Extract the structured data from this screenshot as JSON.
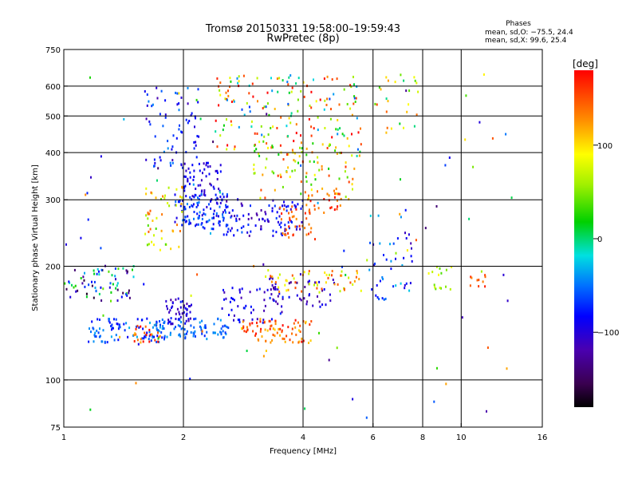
{
  "chart_data": {
    "type": "scatter",
    "title": "Tromsø 20150331 19:58:00–19:59:43",
    "subtitle": "RwPretec (8p)",
    "xlabel": "Frequency [MHz]",
    "ylabel": "Stationary phase Virtual Height [km]",
    "x_scale": "log",
    "y_scale": "log",
    "xlim": [
      1,
      16
    ],
    "ylim": [
      75,
      750
    ],
    "x_ticks": [
      1,
      2,
      4,
      6,
      8,
      10,
      16
    ],
    "x_tick_labels": [
      "1",
      "2",
      "4",
      "6",
      "8",
      "10",
      "16"
    ],
    "y_ticks": [
      75,
      100,
      200,
      300,
      400,
      500,
      600,
      750
    ],
    "y_tick_labels": [
      "75",
      "100",
      "200",
      "300",
      "400",
      "500",
      "600",
      "750"
    ],
    "grid": true,
    "grid_x": [
      2,
      4,
      6,
      8,
      10
    ],
    "grid_y": [
      100,
      200,
      300,
      400,
      500,
      600
    ],
    "phase_stats": {
      "heading": "Phases",
      "line1": "mean, sd,O: −75.5, 24.4",
      "line2": "mean, sd,X:  99.6, 25.4"
    },
    "colorbar": {
      "label": "[deg]",
      "range": [
        -180,
        180
      ],
      "ticks": [
        100,
        0,
        -100
      ],
      "tick_labels": [
        "100",
        "0",
        "−100"
      ],
      "colormap": "rainbow (black-purple-blue-cyan-green-yellow-orange-red)"
    },
    "clusters": [
      {
        "x": [
          1.0,
          1.5
        ],
        "y": [
          160,
          200
        ],
        "n": 70,
        "phase": -60,
        "spread": 110
      },
      {
        "x": [
          1.15,
          1.8
        ],
        "y": [
          125,
          145
        ],
        "n": 90,
        "phase": -60,
        "spread": 30
      },
      {
        "x": [
          1.5,
          1.75
        ],
        "y": [
          125,
          140
        ],
        "n": 25,
        "phase": 150,
        "spread": 40
      },
      {
        "x": [
          1.7,
          2.6
        ],
        "y": [
          128,
          145
        ],
        "n": 80,
        "phase": -55,
        "spread": 20
      },
      {
        "x": [
          1.8,
          2.1
        ],
        "y": [
          140,
          165
        ],
        "n": 50,
        "phase": -100,
        "spread": 25
      },
      {
        "x": [
          1.9,
          2.6
        ],
        "y": [
          250,
          310
        ],
        "n": 110,
        "phase": -75,
        "spread": 30
      },
      {
        "x": [
          2.0,
          2.5
        ],
        "y": [
          300,
          380
        ],
        "n": 60,
        "phase": -95,
        "spread": 20
      },
      {
        "x": [
          1.6,
          2.2
        ],
        "y": [
          360,
          600
        ],
        "n": 70,
        "phase": -80,
        "spread": 40
      },
      {
        "x": [
          1.6,
          2.0
        ],
        "y": [
          220,
          330
        ],
        "n": 50,
        "phase": 90,
        "spread": 60
      },
      {
        "x": [
          2.5,
          4.0
        ],
        "y": [
          240,
          300
        ],
        "n": 100,
        "phase": -95,
        "spread": 30
      },
      {
        "x": [
          3.5,
          4.3
        ],
        "y": [
          235,
          290
        ],
        "n": 35,
        "phase": 150,
        "spread": 25
      },
      {
        "x": [
          2.5,
          3.6
        ],
        "y": [
          140,
          175
        ],
        "n": 55,
        "phase": -95,
        "spread": 25
      },
      {
        "x": [
          2.8,
          4.2
        ],
        "y": [
          125,
          145
        ],
        "n": 80,
        "phase": 140,
        "spread": 40
      },
      {
        "x": [
          3.2,
          4.8
        ],
        "y": [
          155,
          190
        ],
        "n": 45,
        "phase": -110,
        "spread": 25
      },
      {
        "x": [
          3.2,
          5.6
        ],
        "y": [
          170,
          195
        ],
        "n": 55,
        "phase": 110,
        "spread": 45
      },
      {
        "x": [
          2.4,
          5.6
        ],
        "y": [
          390,
          640
        ],
        "n": 170,
        "phase": 60,
        "spread": 130
      },
      {
        "x": [
          3.0,
          5.4
        ],
        "y": [
          300,
          430
        ],
        "n": 90,
        "phase": 90,
        "spread": 80
      },
      {
        "x": [
          4.0,
          5.0
        ],
        "y": [
          275,
          320
        ],
        "n": 30,
        "phase": 150,
        "spread": 30
      },
      {
        "x": [
          5.8,
          7.6
        ],
        "y": [
          160,
          290
        ],
        "n": 45,
        "phase": -70,
        "spread": 50
      },
      {
        "x": [
          6.0,
          7.8
        ],
        "y": [
          450,
          650
        ],
        "n": 25,
        "phase": 80,
        "spread": 90
      },
      {
        "x": [
          8.0,
          9.5
        ],
        "y": [
          170,
          200
        ],
        "n": 15,
        "phase": 70,
        "spread": 40
      },
      {
        "x": [
          10.5,
          11.5
        ],
        "y": [
          175,
          190
        ],
        "n": 10,
        "phase": 150,
        "spread": 20
      },
      {
        "x": [
          1.0,
          14.5
        ],
        "y": [
          75,
          650
        ],
        "n": 90,
        "phase": 0,
        "spread": 150
      }
    ]
  }
}
